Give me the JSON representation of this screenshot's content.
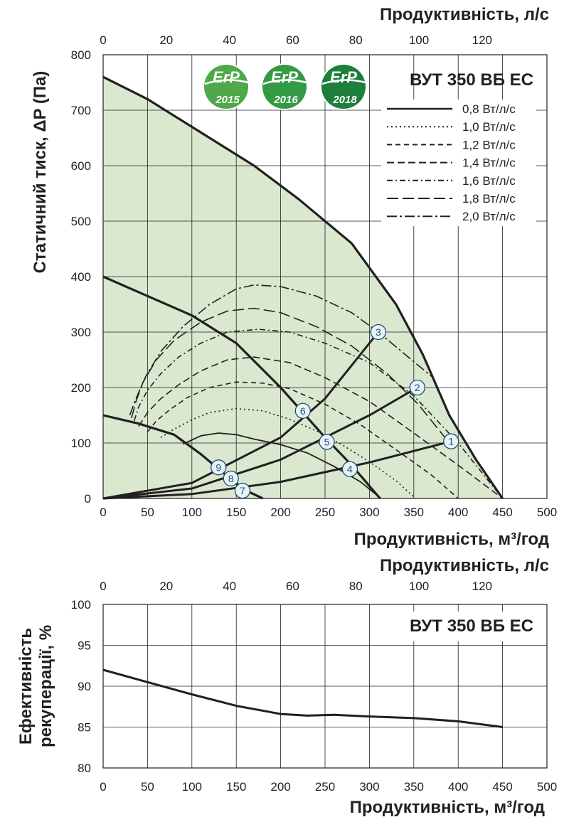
{
  "chart_data": [
    {
      "type": "line",
      "title": "ВУТ 350 ВБ ЕС",
      "xlabel": "Продуктивність, м³/год",
      "x2label": "Продуктивність, л/с",
      "ylabel": "Статичний тиск, ΔP (Па)",
      "xlim": [
        0,
        500
      ],
      "ylim": [
        0,
        800
      ],
      "x_ticks": [
        "0",
        "50",
        "100",
        "150",
        "200",
        "250",
        "300",
        "350",
        "400",
        "450",
        "500"
      ],
      "x2_ticks": [
        "0",
        "20",
        "40",
        "60",
        "80",
        "100",
        "120"
      ],
      "y_ticks": [
        "0",
        "100",
        "200",
        "300",
        "400",
        "500",
        "600",
        "700",
        "800"
      ],
      "badges": [
        {
          "text": "ErP",
          "year": "2015",
          "color": "#4fa84a"
        },
        {
          "text": "ErP",
          "year": "2016",
          "color": "#349a45"
        },
        {
          "text": "ErP",
          "year": "2018",
          "color": "#1d7f3b"
        }
      ],
      "envelope_fill": "#d9e8cf",
      "fan_curves": [
        {
          "x": [
            0,
            50,
            80,
            120,
            170,
            220,
            280,
            330,
            360,
            390,
            420,
            450
          ],
          "y": [
            760,
            720,
            690,
            650,
            600,
            540,
            460,
            350,
            260,
            150,
            70,
            0
          ]
        },
        {
          "x": [
            0,
            50,
            100,
            150,
            200,
            250,
            280,
            312
          ],
          "y": [
            400,
            365,
            330,
            280,
            200,
            110,
            60,
            0
          ]
        },
        {
          "x": [
            0,
            40,
            80,
            110,
            140,
            160,
            180
          ],
          "y": [
            150,
            135,
            115,
            80,
            40,
            15,
            0
          ]
        }
      ],
      "series": [
        {
          "name": "0,8 Вт/л/с",
          "dash": "solid",
          "x": [
            90,
            110,
            130,
            150,
            170,
            200,
            230,
            260,
            290,
            313
          ],
          "y": [
            98,
            113,
            118,
            115,
            107,
            97,
            82,
            58,
            30,
            0
          ]
        },
        {
          "name": "1,0 Вт/л/с",
          "dash": "dotted",
          "x": [
            65,
            80,
            100,
            120,
            150,
            180,
            210,
            240,
            270,
            300,
            330,
            352
          ],
          "y": [
            110,
            125,
            142,
            155,
            162,
            158,
            143,
            122,
            96,
            66,
            32,
            0
          ]
        },
        {
          "name": "1,2 Вт/л/с",
          "dash": "dashed",
          "x": [
            50,
            60,
            75,
            95,
            120,
            150,
            180,
            210,
            250,
            290,
            330,
            370,
            400
          ],
          "y": [
            120,
            140,
            160,
            182,
            200,
            210,
            208,
            198,
            170,
            133,
            88,
            42,
            0
          ]
        },
        {
          "name": "1,4 Вт/л/с",
          "dash": "dashed-long",
          "x": [
            40,
            50,
            65,
            85,
            110,
            140,
            170,
            210,
            250,
            300,
            350,
            400,
            450
          ],
          "y": [
            130,
            155,
            180,
            205,
            230,
            250,
            255,
            245,
            218,
            175,
            118,
            60,
            0
          ]
        },
        {
          "name": "1,6 Вт/л/с",
          "dash": "dashdot",
          "x": [
            35,
            40,
            50,
            65,
            85,
            110,
            140,
            175,
            210,
            250,
            300,
            350,
            400,
            450
          ],
          "y": [
            140,
            165,
            195,
            225,
            255,
            280,
            300,
            305,
            300,
            280,
            245,
            185,
            100,
            0
          ]
        },
        {
          "name": "1,8 Вт/л/с",
          "dash": "longdash",
          "x": [
            32,
            37,
            45,
            60,
            80,
            110,
            140,
            170,
            200,
            240,
            280,
            320,
            355,
            385
          ],
          "y": [
            145,
            175,
            210,
            250,
            285,
            318,
            338,
            343,
            335,
            310,
            275,
            225,
            170,
            110
          ]
        },
        {
          "name": "2,0 Вт/л/с",
          "dash": "dashdotlong",
          "x": [
            30,
            37,
            48,
            65,
            90,
            120,
            150,
            170,
            200,
            240,
            280,
            310,
            340,
            370
          ],
          "y": [
            150,
            180,
            220,
            265,
            310,
            350,
            378,
            385,
            382,
            365,
            335,
            300,
            260,
            220
          ]
        }
      ],
      "system_curves": [
        {
          "x": [
            0,
            100,
            200,
            300,
            392
          ],
          "y": [
            0,
            8,
            30,
            65,
            103
          ]
        },
        {
          "x": [
            0,
            100,
            200,
            300,
            354
          ],
          "y": [
            0,
            18,
            70,
            150,
            200
          ]
        },
        {
          "x": [
            0,
            100,
            200,
            250,
            310
          ],
          "y": [
            0,
            28,
            110,
            180,
            300
          ]
        }
      ],
      "markers": [
        {
          "label": "1",
          "x": 392,
          "y": 103
        },
        {
          "label": "2",
          "x": 354,
          "y": 200
        },
        {
          "label": "3",
          "x": 310,
          "y": 300
        },
        {
          "label": "4",
          "x": 278,
          "y": 53
        },
        {
          "label": "5",
          "x": 252,
          "y": 102
        },
        {
          "label": "6",
          "x": 225,
          "y": 158
        },
        {
          "label": "7",
          "x": 157,
          "y": 14
        },
        {
          "label": "8",
          "x": 144,
          "y": 36
        },
        {
          "label": "9",
          "x": 130,
          "y": 56
        }
      ]
    },
    {
      "type": "line",
      "title": "ВУТ 350 ВБ ЕС",
      "xlabel": "Продуктивність, м³/год",
      "x2label": "Продуктивність, л/с",
      "ylabel": "Ефективність рекуперації, %",
      "ylabel_lines": [
        "Ефективність",
        "рекуперації, %"
      ],
      "xlim": [
        0,
        500
      ],
      "ylim": [
        80,
        100
      ],
      "x_ticks": [
        "0",
        "50",
        "100",
        "150",
        "200",
        "250",
        "300",
        "350",
        "400",
        "450",
        "500"
      ],
      "x2_ticks": [
        "0",
        "20",
        "40",
        "60",
        "80",
        "100",
        "120"
      ],
      "y_ticks": [
        "80",
        "85",
        "90",
        "95",
        "100"
      ],
      "series": [
        {
          "x": [
            0,
            50,
            100,
            150,
            200,
            230,
            260,
            300,
            350,
            400,
            450
          ],
          "y": [
            92,
            90.5,
            89,
            87.6,
            86.6,
            86.4,
            86.5,
            86.3,
            86.1,
            85.7,
            85
          ]
        }
      ]
    }
  ]
}
